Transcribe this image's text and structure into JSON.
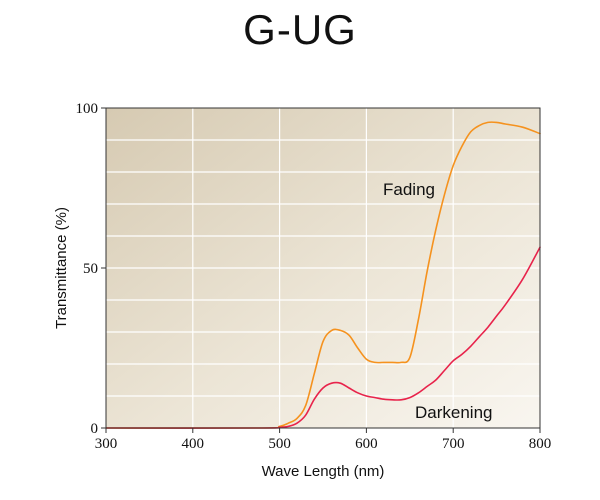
{
  "chart_data": {
    "type": "line",
    "title": "G-UG",
    "xlabel": "Wave Length (nm)",
    "ylabel": "Transmittance (%)",
    "xlim": [
      300,
      800
    ],
    "ylim": [
      0,
      100
    ],
    "x_ticks": [
      "300",
      "400",
      "500",
      "600",
      "700",
      "800"
    ],
    "y_ticks": [
      "0",
      "50",
      "100"
    ],
    "grid": true,
    "series": [
      {
        "name": "Fading",
        "color": "#f5921e",
        "x": [
          300,
          480,
          500,
          510,
          520,
          530,
          540,
          550,
          560,
          570,
          580,
          590,
          600,
          610,
          620,
          630,
          640,
          650,
          660,
          670,
          680,
          690,
          700,
          710,
          720,
          730,
          740,
          750,
          760,
          780,
          800
        ],
        "y": [
          0,
          0,
          0.5,
          1.5,
          3,
          7,
          17,
          27,
          30.5,
          30.5,
          29,
          25,
          21.5,
          20.5,
          20.5,
          20.5,
          20.5,
          22,
          34,
          49,
          62,
          73,
          82,
          88,
          92.5,
          94.5,
          95.5,
          95.5,
          95,
          94,
          92
        ]
      },
      {
        "name": "Darkening",
        "color": "#e8234b",
        "x": [
          300,
          480,
          500,
          510,
          520,
          530,
          540,
          550,
          560,
          570,
          580,
          590,
          600,
          610,
          620,
          630,
          640,
          650,
          660,
          670,
          680,
          690,
          700,
          710,
          720,
          730,
          740,
          750,
          760,
          780,
          800
        ],
        "y": [
          0,
          0,
          0.2,
          0.5,
          1.5,
          4,
          9,
          12.5,
          14,
          14,
          12.5,
          11,
          10,
          9.5,
          9,
          8.8,
          8.8,
          9.5,
          11,
          13,
          15,
          18,
          21,
          23,
          25.5,
          28.5,
          31.5,
          35,
          38.5,
          46.5,
          56.5
        ]
      }
    ],
    "annotations": [
      "Fading",
      "Darkening"
    ]
  }
}
